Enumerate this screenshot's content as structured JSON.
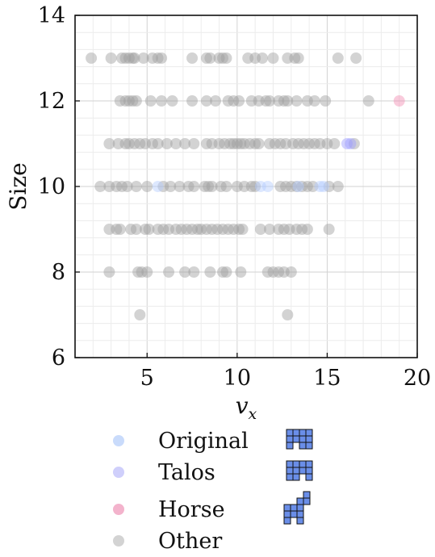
{
  "chart_data": {
    "type": "scatter",
    "title": "",
    "xlabel": "v",
    "xlabel_sub": "x",
    "ylabel": "Size",
    "xlim": [
      1,
      20
    ],
    "ylim": [
      6,
      14
    ],
    "x_ticks": [
      "5",
      "10",
      "15",
      "20"
    ],
    "y_ticks": [
      "6",
      "8",
      "10",
      "12",
      "14"
    ],
    "grid": true,
    "legend_position": "bottom",
    "series": [
      {
        "name": "Other",
        "color": "#9e9e9e",
        "points": [
          [
            1.9,
            13
          ],
          [
            3,
            13
          ],
          [
            3.6,
            13
          ],
          [
            3.8,
            13
          ],
          [
            4,
            13
          ],
          [
            4.2,
            13
          ],
          [
            4.3,
            13
          ],
          [
            4.8,
            13
          ],
          [
            5.3,
            13
          ],
          [
            5.6,
            13
          ],
          [
            5.8,
            13
          ],
          [
            7.5,
            13
          ],
          [
            8.3,
            13
          ],
          [
            8.5,
            13
          ],
          [
            9,
            13
          ],
          [
            9.2,
            13
          ],
          [
            9.4,
            13
          ],
          [
            10.6,
            13
          ],
          [
            11,
            13
          ],
          [
            11.4,
            13
          ],
          [
            12,
            13
          ],
          [
            12.8,
            13
          ],
          [
            13.2,
            13
          ],
          [
            13.4,
            13
          ],
          [
            15.6,
            13
          ],
          [
            16.6,
            13
          ],
          [
            3.5,
            12
          ],
          [
            3.8,
            12
          ],
          [
            4,
            12
          ],
          [
            4.2,
            12
          ],
          [
            4.4,
            12
          ],
          [
            5.2,
            12
          ],
          [
            5.8,
            12
          ],
          [
            6.4,
            12
          ],
          [
            7.5,
            12
          ],
          [
            8.3,
            12
          ],
          [
            8.8,
            12
          ],
          [
            9.5,
            12
          ],
          [
            9.8,
            12
          ],
          [
            10.1,
            12
          ],
          [
            10.8,
            12
          ],
          [
            11.2,
            12
          ],
          [
            11.6,
            12
          ],
          [
            11.8,
            12
          ],
          [
            12.3,
            12
          ],
          [
            12.6,
            12
          ],
          [
            12.8,
            12
          ],
          [
            13.3,
            12
          ],
          [
            13.9,
            12
          ],
          [
            14.3,
            12
          ],
          [
            14.9,
            12
          ],
          [
            17.3,
            12
          ],
          [
            2.9,
            11
          ],
          [
            3.4,
            11
          ],
          [
            3.8,
            11
          ],
          [
            4.0,
            11
          ],
          [
            4.3,
            11
          ],
          [
            4.6,
            11
          ],
          [
            4.9,
            11
          ],
          [
            5.3,
            11
          ],
          [
            5.6,
            11
          ],
          [
            6.1,
            11
          ],
          [
            6.6,
            11
          ],
          [
            7.1,
            11
          ],
          [
            7.6,
            11
          ],
          [
            8.3,
            11
          ],
          [
            8.6,
            11
          ],
          [
            9.0,
            11
          ],
          [
            9.3,
            11
          ],
          [
            9.6,
            11
          ],
          [
            9.8,
            11
          ],
          [
            10,
            11
          ],
          [
            10.2,
            11
          ],
          [
            10.4,
            11
          ],
          [
            10.7,
            11
          ],
          [
            11.0,
            11
          ],
          [
            11.2,
            11
          ],
          [
            11.8,
            11
          ],
          [
            12.1,
            11
          ],
          [
            12.4,
            11
          ],
          [
            12.7,
            11
          ],
          [
            13.1,
            11
          ],
          [
            13.4,
            11
          ],
          [
            13.7,
            11
          ],
          [
            14.0,
            11
          ],
          [
            14.3,
            11
          ],
          [
            14.6,
            11
          ],
          [
            15.0,
            11
          ],
          [
            15.4,
            11
          ],
          [
            16.5,
            11
          ],
          [
            2.4,
            10
          ],
          [
            2.9,
            10
          ],
          [
            3.3,
            10
          ],
          [
            3.6,
            10
          ],
          [
            3.9,
            10
          ],
          [
            4.4,
            10
          ],
          [
            5,
            10
          ],
          [
            5.9,
            10
          ],
          [
            6.3,
            10
          ],
          [
            6.8,
            10
          ],
          [
            7.3,
            10
          ],
          [
            7.6,
            10
          ],
          [
            8.2,
            10
          ],
          [
            8.4,
            10
          ],
          [
            8.6,
            10
          ],
          [
            9.1,
            10
          ],
          [
            9.4,
            10
          ],
          [
            10.0,
            10
          ],
          [
            10.4,
            10
          ],
          [
            10.8,
            10
          ],
          [
            11.0,
            10
          ],
          [
            12.4,
            10
          ],
          [
            12.7,
            10
          ],
          [
            13.0,
            10
          ],
          [
            13.3,
            10
          ],
          [
            13.6,
            10
          ],
          [
            13.9,
            10
          ],
          [
            14.2,
            10
          ],
          [
            15.1,
            10
          ],
          [
            15.6,
            10
          ],
          [
            2.9,
            9
          ],
          [
            3.3,
            9
          ],
          [
            3.5,
            9
          ],
          [
            4.1,
            9
          ],
          [
            4.4,
            9
          ],
          [
            4.9,
            9
          ],
          [
            5.1,
            9
          ],
          [
            5.6,
            9
          ],
          [
            5.9,
            9
          ],
          [
            6.2,
            9
          ],
          [
            6.6,
            9
          ],
          [
            6.9,
            9
          ],
          [
            7.2,
            9
          ],
          [
            7.5,
            9
          ],
          [
            7.8,
            9
          ],
          [
            8.0,
            9
          ],
          [
            8.3,
            9
          ],
          [
            8.6,
            9
          ],
          [
            8.9,
            9
          ],
          [
            9.2,
            9
          ],
          [
            9.5,
            9
          ],
          [
            9.8,
            9
          ],
          [
            10.1,
            9
          ],
          [
            10.3,
            9
          ],
          [
            11.3,
            9
          ],
          [
            11.8,
            9
          ],
          [
            12.3,
            9
          ],
          [
            12.6,
            9
          ],
          [
            12.9,
            9
          ],
          [
            13.3,
            9
          ],
          [
            13.6,
            9
          ],
          [
            13.9,
            9
          ],
          [
            15.1,
            9
          ],
          [
            2.9,
            8
          ],
          [
            4.5,
            8
          ],
          [
            4.7,
            8
          ],
          [
            5.0,
            8
          ],
          [
            6.2,
            8
          ],
          [
            7.1,
            8
          ],
          [
            7.6,
            8
          ],
          [
            8.5,
            8
          ],
          [
            9.2,
            8
          ],
          [
            9.4,
            8
          ],
          [
            10.2,
            8
          ],
          [
            11.7,
            8
          ],
          [
            12.0,
            8
          ],
          [
            12.3,
            8
          ],
          [
            12.6,
            8
          ],
          [
            13.0,
            8
          ],
          [
            4.6,
            7
          ],
          [
            12.8,
            7
          ]
        ]
      },
      {
        "name": "Original",
        "color": "#b3ccff",
        "points": [
          [
            5.6,
            10
          ],
          [
            11.3,
            10
          ],
          [
            11.7,
            10
          ],
          [
            13.4,
            10
          ],
          [
            14.6,
            10
          ],
          [
            14.8,
            10
          ]
        ]
      },
      {
        "name": "Talos",
        "color": "#9b9bff",
        "points": [
          [
            16.1,
            11
          ],
          [
            16.3,
            11
          ]
        ]
      },
      {
        "name": "Horse",
        "color": "#f28cb1",
        "points": [
          [
            19,
            12
          ]
        ]
      }
    ],
    "legend": [
      {
        "name": "Original",
        "color": "#c9dbfb",
        "icon": "original-polyomino-icon"
      },
      {
        "name": "Talos",
        "color": "#cfcffb",
        "icon": "talos-polyomino-icon"
      },
      {
        "name": "Horse",
        "color": "#f3b3cc",
        "icon": "horse-polyomino-icon"
      },
      {
        "name": "Other",
        "color": "#d3d3d3",
        "icon": ""
      }
    ],
    "icon_color": "#6a8ee8"
  }
}
